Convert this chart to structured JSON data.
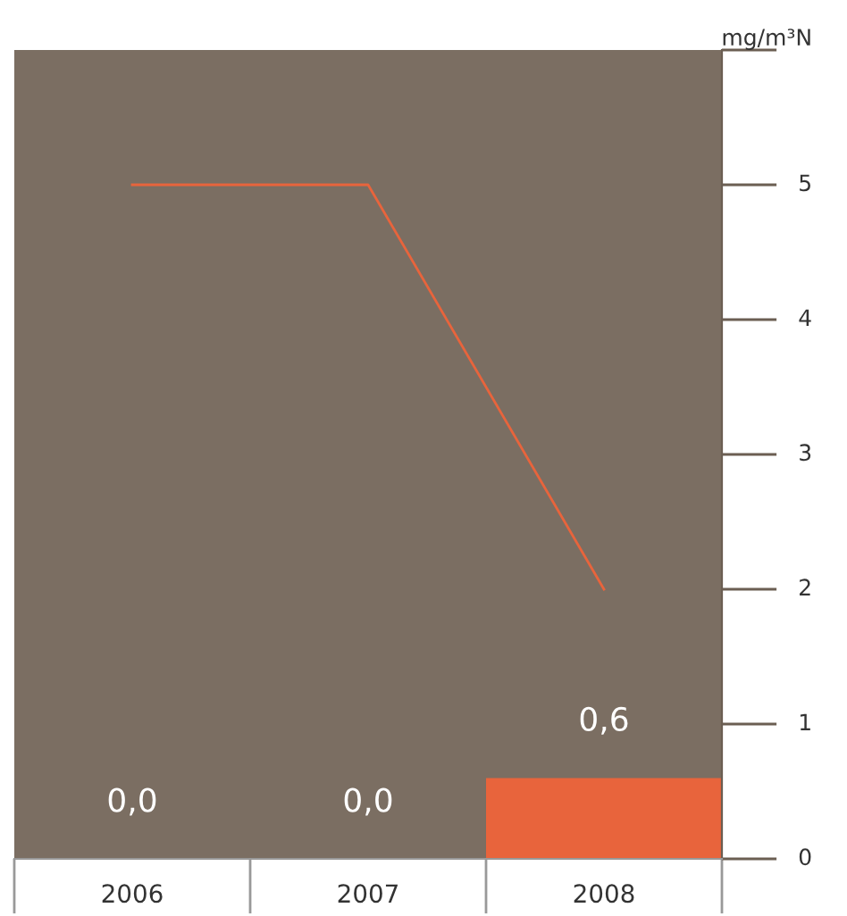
{
  "chart_data": {
    "type": "bar",
    "categories": [
      "2006",
      "2007",
      "2008"
    ],
    "series": [
      {
        "color": "#e8643c",
        "values": [
          0.0,
          0.0,
          0.6
        ],
        "value_labels": [
          "0,0",
          "0,0",
          "0,6"
        ]
      },
      {
        "type": "line",
        "color": "#e8643c",
        "values": [
          5,
          5,
          2
        ]
      }
    ],
    "ylim": [
      0,
      6
    ],
    "yticks": [
      0,
      1,
      2,
      3,
      4,
      5,
      {
        "value": 6,
        "label": "mg/m³N"
      }
    ],
    "grid": false,
    "legend": false
  }
}
